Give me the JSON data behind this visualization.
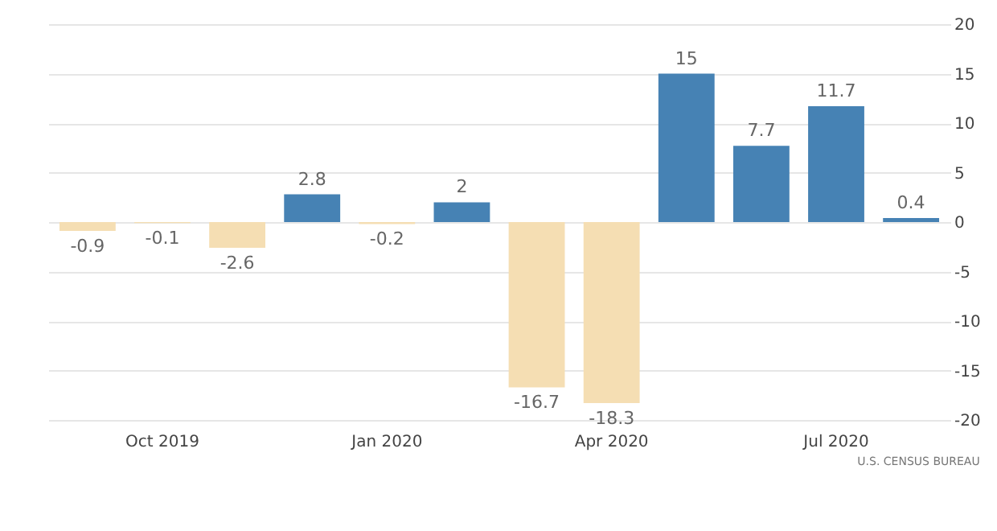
{
  "chart_data": {
    "type": "bar",
    "categories": [
      null,
      "Oct 2019",
      null,
      null,
      "Jan 2020",
      null,
      null,
      "Apr 2020",
      null,
      null,
      "Jul 2020",
      null
    ],
    "values": [
      -0.9,
      -0.1,
      -2.6,
      2.8,
      -0.2,
      2,
      -16.7,
      -18.3,
      15,
      7.7,
      11.7,
      0.4
    ],
    "colors": [
      "#f5deb3",
      "#f5deb3",
      "#f5deb3",
      "#4682b4",
      "#f5deb3",
      "#4682b4",
      "#f5deb3",
      "#f5deb3",
      "#4682b4",
      "#4682b4",
      "#4682b4",
      "#4682b4"
    ],
    "ylim": [
      -20,
      20
    ],
    "yticks": [
      -20,
      -15,
      -10,
      -5,
      0,
      5,
      10,
      15,
      20
    ],
    "grid": "y",
    "data_labels": true,
    "annotations": [
      "U.S. CENSUS BUREAU"
    ]
  }
}
